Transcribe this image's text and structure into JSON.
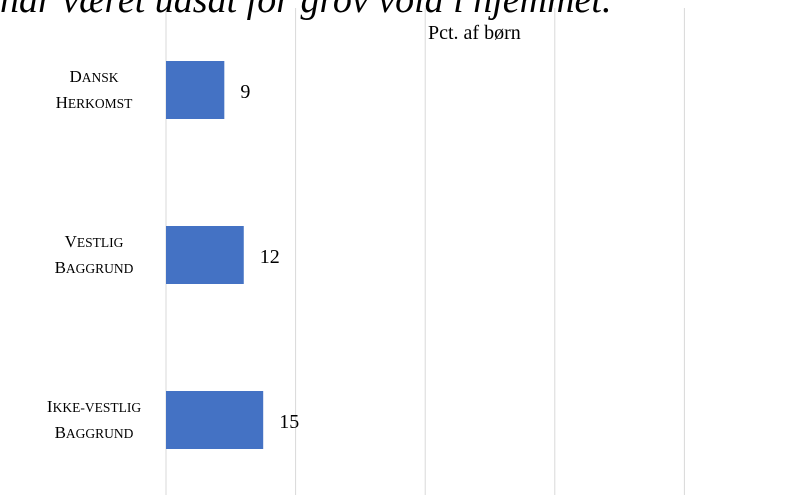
{
  "chart_data": {
    "type": "bar",
    "orientation": "horizontal",
    "title": "har været udsat for grov vold i hjemmet.",
    "unit_label": "Pct. af børn",
    "categories": [
      [
        "Dansk",
        "herkomst"
      ],
      [
        "Vestlig",
        "baggrund"
      ],
      [
        "Ikke-vestlig",
        "baggrund"
      ]
    ],
    "values": [
      9,
      12,
      15
    ],
    "xlim": [
      0,
      90
    ],
    "gridlines": [
      0,
      20,
      40,
      60,
      80,
      100
    ],
    "grid": true,
    "bar_color": "#4472C4",
    "data_labels": true
  }
}
